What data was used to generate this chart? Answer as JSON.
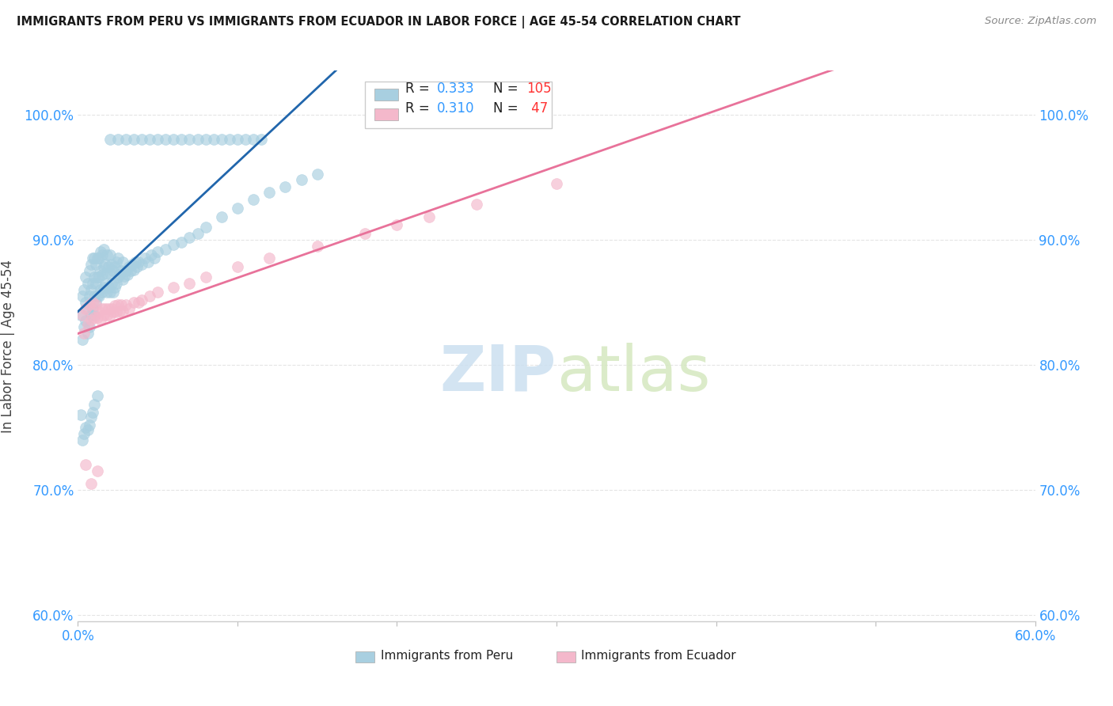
{
  "title": "IMMIGRANTS FROM PERU VS IMMIGRANTS FROM ECUADOR IN LABOR FORCE | AGE 45-54 CORRELATION CHART",
  "source": "Source: ZipAtlas.com",
  "ylabel": "In Labor Force | Age 45-54",
  "xlim": [
    0.0,
    0.6
  ],
  "ylim": [
    0.595,
    1.035
  ],
  "xticks": [
    0.0,
    0.1,
    0.2,
    0.3,
    0.4,
    0.5,
    0.6
  ],
  "xtick_labels": [
    "0.0%",
    "",
    "",
    "",
    "",
    "",
    "60.0%"
  ],
  "yticks": [
    0.6,
    0.7,
    0.8,
    0.9,
    1.0
  ],
  "ytick_labels": [
    "60.0%",
    "70.0%",
    "80.0%",
    "90.0%",
    "100.0%"
  ],
  "peru_R": "0.333",
  "peru_N": "105",
  "ecuador_R": "0.310",
  "ecuador_N": " 47",
  "peru_color": "#a8cfe0",
  "ecuador_color": "#f4b8cb",
  "peru_trend_color": "#2166ac",
  "ecuador_trend_color": "#e8729a",
  "R_color": "#3399ff",
  "N_color": "#ff3333",
  "tick_color": "#3399ff",
  "title_color": "#1a1a1a",
  "label_color": "#444444",
  "grid_color": "#e5e5e5",
  "watermark_color": "#ddeeff",
  "peru_x": [
    0.002,
    0.003,
    0.003,
    0.004,
    0.004,
    0.005,
    0.005,
    0.005,
    0.006,
    0.006,
    0.006,
    0.007,
    0.007,
    0.007,
    0.008,
    0.008,
    0.008,
    0.009,
    0.009,
    0.009,
    0.01,
    0.01,
    0.01,
    0.01,
    0.011,
    0.011,
    0.011,
    0.012,
    0.012,
    0.012,
    0.013,
    0.013,
    0.013,
    0.014,
    0.014,
    0.014,
    0.015,
    0.015,
    0.015,
    0.016,
    0.016,
    0.016,
    0.017,
    0.017,
    0.018,
    0.018,
    0.018,
    0.019,
    0.019,
    0.02,
    0.02,
    0.02,
    0.021,
    0.021,
    0.022,
    0.022,
    0.023,
    0.023,
    0.024,
    0.024,
    0.025,
    0.025,
    0.026,
    0.027,
    0.028,
    0.028,
    0.029,
    0.03,
    0.031,
    0.032,
    0.033,
    0.034,
    0.035,
    0.036,
    0.037,
    0.038,
    0.04,
    0.042,
    0.044,
    0.046,
    0.048,
    0.05,
    0.055,
    0.06,
    0.065,
    0.07,
    0.075,
    0.08,
    0.09,
    0.1,
    0.11,
    0.12,
    0.13,
    0.14,
    0.15,
    0.002,
    0.003,
    0.004,
    0.005,
    0.006,
    0.007,
    0.008,
    0.009,
    0.01,
    0.012
  ],
  "peru_y": [
    0.84,
    0.82,
    0.855,
    0.83,
    0.86,
    0.835,
    0.85,
    0.87,
    0.825,
    0.845,
    0.865,
    0.83,
    0.855,
    0.875,
    0.84,
    0.86,
    0.88,
    0.845,
    0.865,
    0.885,
    0.84,
    0.855,
    0.87,
    0.885,
    0.85,
    0.865,
    0.88,
    0.855,
    0.87,
    0.885,
    0.855,
    0.87,
    0.885,
    0.86,
    0.875,
    0.89,
    0.858,
    0.872,
    0.888,
    0.862,
    0.878,
    0.892,
    0.865,
    0.88,
    0.858,
    0.873,
    0.888,
    0.862,
    0.878,
    0.858,
    0.873,
    0.888,
    0.865,
    0.88,
    0.858,
    0.875,
    0.862,
    0.878,
    0.865,
    0.882,
    0.87,
    0.885,
    0.872,
    0.875,
    0.868,
    0.882,
    0.871,
    0.875,
    0.872,
    0.878,
    0.875,
    0.88,
    0.876,
    0.882,
    0.878,
    0.882,
    0.88,
    0.885,
    0.882,
    0.888,
    0.885,
    0.89,
    0.892,
    0.896,
    0.898,
    0.902,
    0.905,
    0.91,
    0.918,
    0.925,
    0.932,
    0.938,
    0.942,
    0.948,
    0.952,
    0.76,
    0.74,
    0.745,
    0.75,
    0.748,
    0.752,
    0.758,
    0.762,
    0.768,
    0.775
  ],
  "peru_y_top": [
    0.98,
    0.98,
    0.98,
    0.98,
    0.98,
    0.98,
    0.98,
    0.98,
    0.98,
    0.98,
    0.98,
    0.98,
    0.98,
    0.98,
    0.98,
    0.98,
    0.98,
    0.98,
    0.98,
    0.98
  ],
  "peru_x_top": [
    0.02,
    0.025,
    0.03,
    0.035,
    0.04,
    0.045,
    0.05,
    0.055,
    0.06,
    0.065,
    0.07,
    0.075,
    0.08,
    0.085,
    0.09,
    0.095,
    0.1,
    0.105,
    0.11,
    0.115
  ],
  "ecuador_x": [
    0.003,
    0.004,
    0.005,
    0.006,
    0.007,
    0.008,
    0.009,
    0.01,
    0.011,
    0.012,
    0.013,
    0.014,
    0.015,
    0.016,
    0.017,
    0.018,
    0.019,
    0.02,
    0.021,
    0.022,
    0.023,
    0.024,
    0.025,
    0.026,
    0.027,
    0.028,
    0.03,
    0.032,
    0.035,
    0.038,
    0.04,
    0.045,
    0.05,
    0.06,
    0.07,
    0.08,
    0.1,
    0.12,
    0.15,
    0.18,
    0.2,
    0.22,
    0.25,
    0.3,
    0.005,
    0.008,
    0.012
  ],
  "ecuador_y": [
    0.84,
    0.825,
    0.845,
    0.832,
    0.848,
    0.836,
    0.85,
    0.838,
    0.848,
    0.838,
    0.842,
    0.836,
    0.845,
    0.84,
    0.845,
    0.84,
    0.845,
    0.84,
    0.845,
    0.842,
    0.847,
    0.842,
    0.848,
    0.843,
    0.848,
    0.843,
    0.848,
    0.845,
    0.85,
    0.85,
    0.852,
    0.855,
    0.858,
    0.862,
    0.865,
    0.87,
    0.878,
    0.885,
    0.895,
    0.905,
    0.912,
    0.918,
    0.928,
    0.945,
    0.72,
    0.705,
    0.715
  ]
}
